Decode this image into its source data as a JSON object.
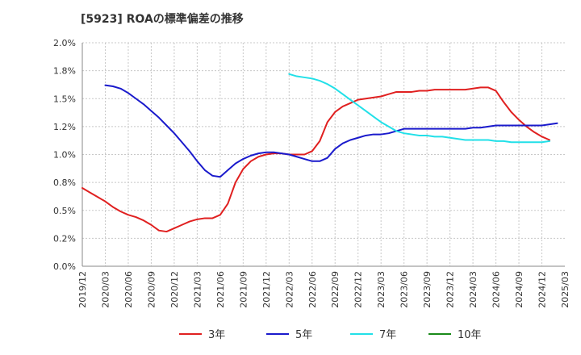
{
  "chart_data": {
    "type": "line",
    "title": "[5923]  ROAの標準偏差の推移",
    "xlabel": "",
    "ylabel": "",
    "ylim": [
      0,
      2.0
    ],
    "y_ticks": [
      0,
      0.25,
      0.5,
      0.75,
      1.0,
      1.25,
      1.5,
      1.75,
      2.0
    ],
    "y_tick_labels": [
      "0.0%",
      "0.2%",
      "0.5%",
      "0.8%",
      "1.0%",
      "1.2%",
      "1.5%",
      "1.8%",
      "2.0%"
    ],
    "x_tick_labels": [
      "2019/12",
      "2020/03",
      "2020/06",
      "2020/09",
      "2020/12",
      "2021/03",
      "2021/06",
      "2021/09",
      "2021/12",
      "2022/03",
      "2022/06",
      "2022/09",
      "2022/12",
      "2023/03",
      "2023/06",
      "2023/09",
      "2023/12",
      "2024/03",
      "2024/06",
      "2024/09",
      "2024/12",
      "2025/03"
    ],
    "grid": true,
    "legend_position": "bottom",
    "series": [
      {
        "name": "3年",
        "color": "#e02020",
        "start_month": 0,
        "values": [
          0.7,
          0.66,
          0.62,
          0.58,
          0.53,
          0.49,
          0.46,
          0.44,
          0.41,
          0.37,
          0.32,
          0.31,
          0.34,
          0.37,
          0.4,
          0.42,
          0.43,
          0.43,
          0.46,
          0.56,
          0.75,
          0.87,
          0.94,
          0.98,
          1.0,
          1.01,
          1.01,
          1.0,
          1.0,
          1.0,
          1.03,
          1.12,
          1.29,
          1.38,
          1.43,
          1.46,
          1.49,
          1.5,
          1.51,
          1.52,
          1.54,
          1.56,
          1.56,
          1.56,
          1.57,
          1.57,
          1.58,
          1.58,
          1.58,
          1.58,
          1.58,
          1.59,
          1.6,
          1.6,
          1.57,
          1.47,
          1.38,
          1.31,
          1.25,
          1.2,
          1.16,
          1.13
        ]
      },
      {
        "name": "5年",
        "color": "#1a1acc",
        "start_month": 3,
        "values": [
          1.62,
          1.61,
          1.59,
          1.55,
          1.5,
          1.45,
          1.39,
          1.33,
          1.26,
          1.19,
          1.11,
          1.03,
          0.94,
          0.86,
          0.81,
          0.8,
          0.86,
          0.92,
          0.96,
          0.99,
          1.01,
          1.02,
          1.02,
          1.01,
          1.0,
          0.98,
          0.96,
          0.94,
          0.94,
          0.97,
          1.05,
          1.1,
          1.13,
          1.15,
          1.17,
          1.18,
          1.18,
          1.19,
          1.21,
          1.23,
          1.23,
          1.23,
          1.23,
          1.23,
          1.23,
          1.23,
          1.23,
          1.23,
          1.24,
          1.24,
          1.25,
          1.26,
          1.26,
          1.26,
          1.26,
          1.26,
          1.26,
          1.26,
          1.27,
          1.28
        ]
      },
      {
        "name": "7年",
        "color": "#22e0e8",
        "start_month": 27,
        "values": [
          1.72,
          1.7,
          1.69,
          1.68,
          1.66,
          1.63,
          1.59,
          1.54,
          1.49,
          1.44,
          1.39,
          1.34,
          1.29,
          1.25,
          1.21,
          1.19,
          1.18,
          1.17,
          1.17,
          1.16,
          1.16,
          1.15,
          1.14,
          1.13,
          1.13,
          1.13,
          1.13,
          1.12,
          1.12,
          1.11,
          1.11,
          1.11,
          1.11,
          1.11,
          1.12
        ]
      },
      {
        "name": "10年",
        "color": "#1a8a1a",
        "start_month": 0,
        "values": []
      }
    ]
  }
}
